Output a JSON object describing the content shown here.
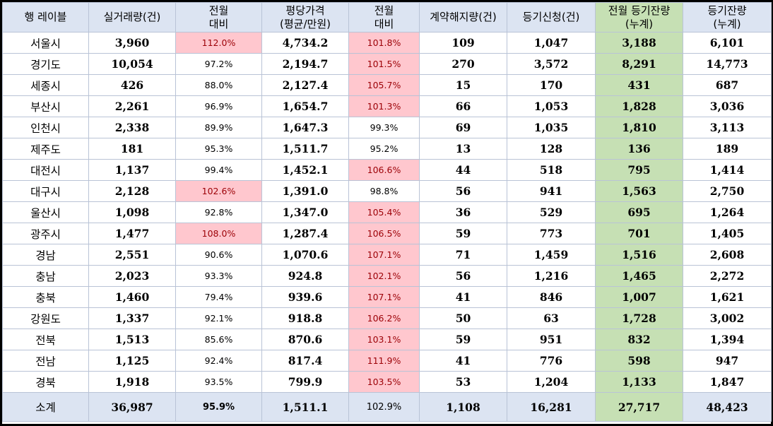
{
  "table": {
    "headers": [
      [
        "행 레이블"
      ],
      [
        "실거래량(건)"
      ],
      [
        "전월",
        "대비"
      ],
      [
        "평당가격",
        "(평균/만원)"
      ],
      [
        "전월",
        "대비"
      ],
      [
        "계약해지량(건)"
      ],
      [
        "등기신청(건)"
      ],
      [
        "전월 등기잔량",
        "(누계)"
      ],
      [
        "등기잔량",
        "(누계)"
      ]
    ],
    "rows": [
      {
        "region": "서울시",
        "volume": "3,960",
        "volume_mom": "112.0%",
        "volume_mom_up": true,
        "price": "4,734.2",
        "price_mom": "101.8%",
        "price_mom_up": true,
        "cancel": "109",
        "reg_apply": "1,047",
        "prev_balance": "3,188",
        "balance": "6,101"
      },
      {
        "region": "경기도",
        "volume": "10,054",
        "volume_mom": "97.2%",
        "volume_mom_up": false,
        "price": "2,194.7",
        "price_mom": "101.5%",
        "price_mom_up": true,
        "cancel": "270",
        "reg_apply": "3,572",
        "prev_balance": "8,291",
        "balance": "14,773"
      },
      {
        "region": "세종시",
        "volume": "426",
        "volume_mom": "88.0%",
        "volume_mom_up": false,
        "price": "2,127.4",
        "price_mom": "105.7%",
        "price_mom_up": true,
        "cancel": "15",
        "reg_apply": "170",
        "prev_balance": "431",
        "balance": "687"
      },
      {
        "region": "부산시",
        "volume": "2,261",
        "volume_mom": "96.9%",
        "volume_mom_up": false,
        "price": "1,654.7",
        "price_mom": "101.3%",
        "price_mom_up": true,
        "cancel": "66",
        "reg_apply": "1,053",
        "prev_balance": "1,828",
        "balance": "3,036"
      },
      {
        "region": "인천시",
        "volume": "2,338",
        "volume_mom": "89.9%",
        "volume_mom_up": false,
        "price": "1,647.3",
        "price_mom": "99.3%",
        "price_mom_up": false,
        "cancel": "69",
        "reg_apply": "1,035",
        "prev_balance": "1,810",
        "balance": "3,113"
      },
      {
        "region": "제주도",
        "volume": "181",
        "volume_mom": "95.3%",
        "volume_mom_up": false,
        "price": "1,511.7",
        "price_mom": "95.2%",
        "price_mom_up": false,
        "cancel": "13",
        "reg_apply": "128",
        "prev_balance": "136",
        "balance": "189"
      },
      {
        "region": "대전시",
        "volume": "1,137",
        "volume_mom": "99.4%",
        "volume_mom_up": false,
        "price": "1,452.1",
        "price_mom": "106.6%",
        "price_mom_up": true,
        "cancel": "44",
        "reg_apply": "518",
        "prev_balance": "795",
        "balance": "1,414"
      },
      {
        "region": "대구시",
        "volume": "2,128",
        "volume_mom": "102.6%",
        "volume_mom_up": true,
        "price": "1,391.0",
        "price_mom": "98.8%",
        "price_mom_up": false,
        "cancel": "56",
        "reg_apply": "941",
        "prev_balance": "1,563",
        "balance": "2,750"
      },
      {
        "region": "울산시",
        "volume": "1,098",
        "volume_mom": "92.8%",
        "volume_mom_up": false,
        "price": "1,347.0",
        "price_mom": "105.4%",
        "price_mom_up": true,
        "cancel": "36",
        "reg_apply": "529",
        "prev_balance": "695",
        "balance": "1,264"
      },
      {
        "region": "광주시",
        "volume": "1,477",
        "volume_mom": "108.0%",
        "volume_mom_up": true,
        "price": "1,287.4",
        "price_mom": "106.5%",
        "price_mom_up": true,
        "cancel": "59",
        "reg_apply": "773",
        "prev_balance": "701",
        "balance": "1,405"
      },
      {
        "region": "경남",
        "volume": "2,551",
        "volume_mom": "90.6%",
        "volume_mom_up": false,
        "price": "1,070.6",
        "price_mom": "107.1%",
        "price_mom_up": true,
        "cancel": "71",
        "reg_apply": "1,459",
        "prev_balance": "1,516",
        "balance": "2,608"
      },
      {
        "region": "충남",
        "volume": "2,023",
        "volume_mom": "93.3%",
        "volume_mom_up": false,
        "price": "924.8",
        "price_mom": "102.1%",
        "price_mom_up": true,
        "cancel": "56",
        "reg_apply": "1,216",
        "prev_balance": "1,465",
        "balance": "2,272"
      },
      {
        "region": "충북",
        "volume": "1,460",
        "volume_mom": "79.4%",
        "volume_mom_up": false,
        "price": "939.6",
        "price_mom": "107.1%",
        "price_mom_up": true,
        "cancel": "41",
        "reg_apply": "846",
        "prev_balance": "1,007",
        "balance": "1,621"
      },
      {
        "region": "강원도",
        "volume": "1,337",
        "volume_mom": "92.1%",
        "volume_mom_up": false,
        "price": "918.8",
        "price_mom": "106.2%",
        "price_mom_up": true,
        "cancel": "50",
        "reg_apply": "63",
        "prev_balance": "1,728",
        "balance": "3,002"
      },
      {
        "region": "전북",
        "volume": "1,513",
        "volume_mom": "85.6%",
        "volume_mom_up": false,
        "price": "870.6",
        "price_mom": "103.1%",
        "price_mom_up": true,
        "cancel": "59",
        "reg_apply": "951",
        "prev_balance": "832",
        "balance": "1,394"
      },
      {
        "region": "전남",
        "volume": "1,125",
        "volume_mom": "92.4%",
        "volume_mom_up": false,
        "price": "817.4",
        "price_mom": "111.9%",
        "price_mom_up": true,
        "cancel": "41",
        "reg_apply": "776",
        "prev_balance": "598",
        "balance": "947"
      },
      {
        "region": "경북",
        "volume": "1,918",
        "volume_mom": "93.5%",
        "volume_mom_up": false,
        "price": "799.9",
        "price_mom": "103.5%",
        "price_mom_up": true,
        "cancel": "53",
        "reg_apply": "1,204",
        "prev_balance": "1,133",
        "balance": "1,847"
      }
    ],
    "total": {
      "region": "소계",
      "volume": "36,987",
      "volume_mom": "95.9%",
      "price": "1,511.1",
      "price_mom": "102.9%",
      "cancel": "1,108",
      "reg_apply": "16,281",
      "prev_balance": "27,717",
      "balance": "48,423"
    }
  },
  "colors": {
    "header_bg": "#dce4f2",
    "highlight_green": "#c6e0b4",
    "increase_bg": "#ffc7ce",
    "increase_text": "#9c0006",
    "frame_border": "#000000"
  }
}
